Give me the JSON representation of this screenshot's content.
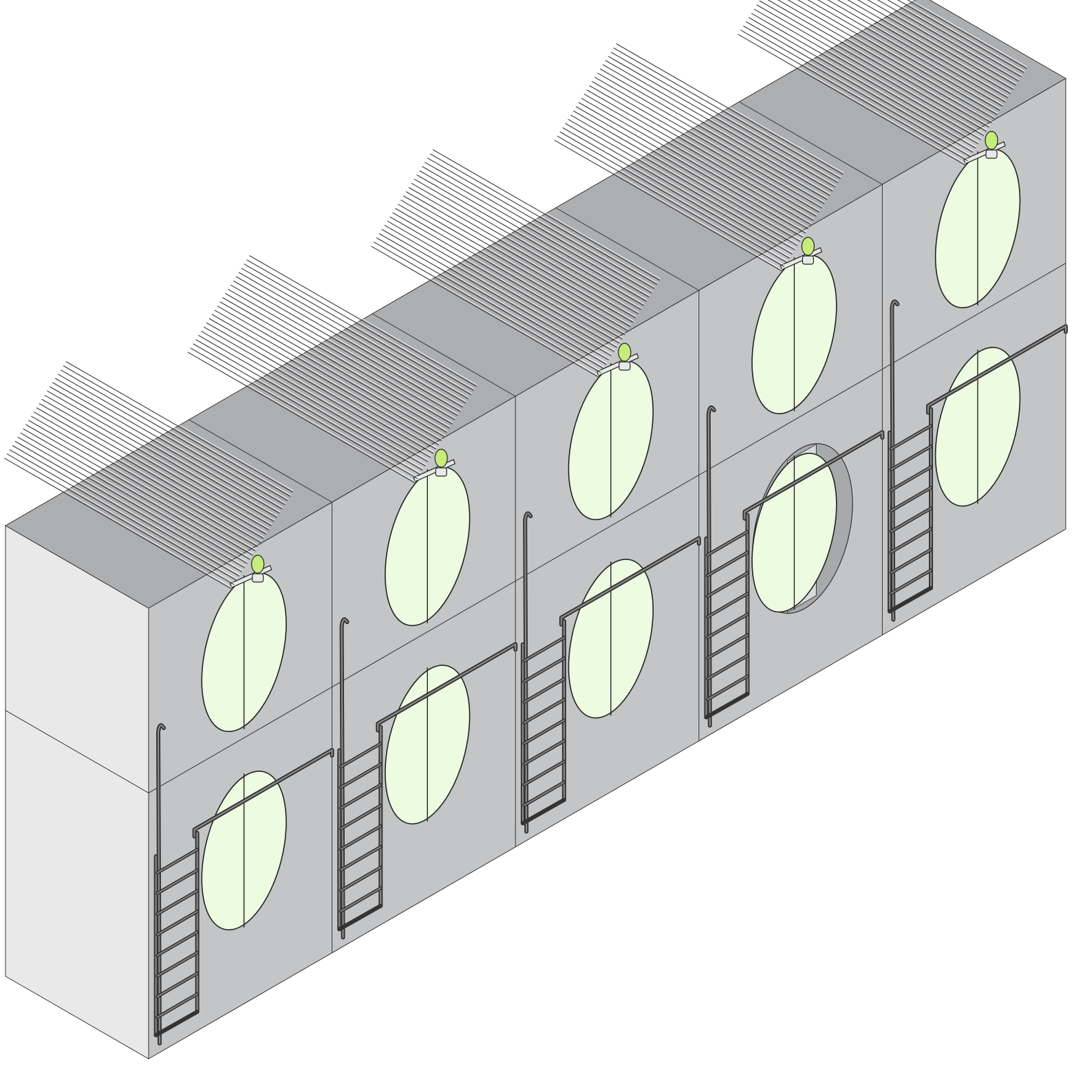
{
  "colors": {
    "roof": "#adaeb0",
    "front": "#c4c5c7",
    "side": "#e9e9e9",
    "port": "#edfbe1",
    "beacon": "#c6ec7c",
    "ring": "#a8a9ab"
  },
  "modules": [
    {
      "ports": [
        "closed",
        "closed"
      ],
      "has_ladder": true
    },
    {
      "ports": [
        "closed",
        "closed"
      ],
      "has_ladder": true
    },
    {
      "ports": [
        "closed",
        "closed"
      ],
      "has_ladder": true
    },
    {
      "ports": [
        "closed",
        "open"
      ],
      "has_ladder": true
    },
    {
      "ports": [
        "closed",
        "closed"
      ],
      "has_ladder": true
    }
  ],
  "roof_units": 5,
  "fins_per_unit": 24,
  "levels": 2
}
